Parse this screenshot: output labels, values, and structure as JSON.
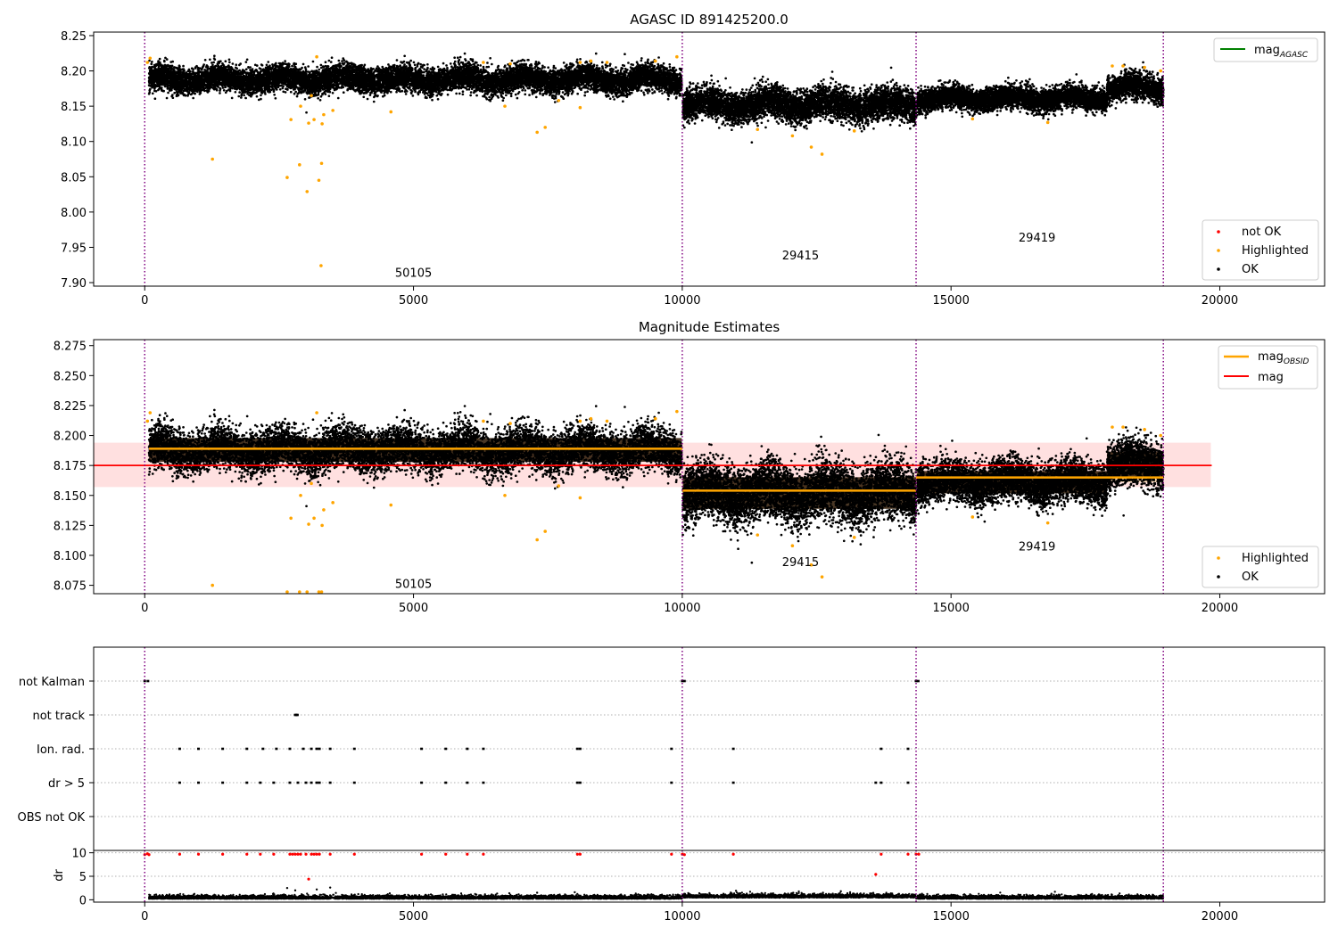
{
  "chart_data": [
    {
      "type": "scatter",
      "title": "AGASC ID 891425200.0",
      "xlim": [
        -950,
        21950
      ],
      "ylim": [
        7.895,
        8.255
      ],
      "xticks": [
        0,
        5000,
        10000,
        15000,
        20000
      ],
      "yticks": [
        7.9,
        7.95,
        8.0,
        8.05,
        8.1,
        8.15,
        8.2,
        8.25
      ],
      "ytick_labels": [
        "7.90",
        "7.95",
        "8.00",
        "8.05",
        "8.10",
        "8.15",
        "8.20",
        "8.25"
      ],
      "obsid_boundaries": [
        0,
        10000,
        14350,
        18950
      ],
      "obsid_labels": [
        {
          "x": 5000,
          "y": 7.908,
          "text": "50105"
        },
        {
          "x": 12200,
          "y": 7.933,
          "text": "29415"
        },
        {
          "x": 16600,
          "y": 7.958,
          "text": "29419"
        }
      ],
      "band_series": [
        {
          "x0": 80,
          "x1": 9990,
          "center": 8.188,
          "half_width": 0.018
        },
        {
          "x0": 10010,
          "x1": 14350,
          "center": 8.152,
          "half_width": 0.022
        },
        {
          "x0": 14370,
          "x1": 17900,
          "center": 8.161,
          "half_width": 0.016
        },
        {
          "x0": 17900,
          "x1": 18950,
          "center": 8.176,
          "half_width": 0.018
        }
      ],
      "highlighted_points": [
        [
          1260,
          8.075
        ],
        [
          2650,
          8.049
        ],
        [
          2880,
          8.067
        ],
        [
          3020,
          8.029
        ],
        [
          3240,
          8.045
        ],
        [
          3290,
          8.069
        ],
        [
          3280,
          7.924
        ],
        [
          2720,
          8.131
        ],
        [
          3050,
          8.126
        ],
        [
          3150,
          8.131
        ],
        [
          3300,
          8.125
        ],
        [
          3330,
          8.138
        ],
        [
          3500,
          8.144
        ],
        [
          4580,
          8.142
        ],
        [
          7300,
          8.113
        ],
        [
          7450,
          8.12
        ],
        [
          6700,
          8.15
        ],
        [
          7700,
          8.158
        ],
        [
          8100,
          8.148
        ],
        [
          2900,
          8.15
        ],
        [
          3100,
          8.165
        ],
        [
          11400,
          8.117
        ],
        [
          12050,
          8.108
        ],
        [
          12400,
          8.092
        ],
        [
          12600,
          8.082
        ],
        [
          13200,
          8.115
        ],
        [
          16800,
          8.127
        ],
        [
          15400,
          8.132
        ],
        [
          100,
          8.218
        ],
        [
          50,
          8.212
        ],
        [
          3200,
          8.22
        ],
        [
          6300,
          8.212
        ],
        [
          6800,
          8.21
        ],
        [
          8100,
          8.212
        ],
        [
          8300,
          8.214
        ],
        [
          8600,
          8.212
        ],
        [
          9500,
          8.214
        ],
        [
          9900,
          8.22
        ],
        [
          18600,
          8.205
        ],
        [
          18200,
          8.207
        ],
        [
          18000,
          8.207
        ],
        [
          18900,
          8.2
        ]
      ],
      "legend": {
        "placement": "upper-right",
        "entries": [
          {
            "label": "mag",
            "sub": "AGASC",
            "color": "#008000"
          }
        ]
      },
      "legend2": {
        "placement": "lower-right",
        "entries": [
          {
            "label": "not OK",
            "color": "#ff0000"
          },
          {
            "label": "Highlighted",
            "color": "#ffa500"
          },
          {
            "label": "OK",
            "color": "#000000"
          }
        ]
      }
    },
    {
      "type": "scatter",
      "title": "Magnitude Estimates",
      "xlim": [
        -950,
        21950
      ],
      "ylim": [
        8.068,
        8.28
      ],
      "xticks": [
        0,
        5000,
        10000,
        15000,
        20000
      ],
      "yticks": [
        8.075,
        8.1,
        8.125,
        8.15,
        8.175,
        8.2,
        8.225,
        8.25,
        8.275
      ],
      "ytick_labels": [
        "8.075",
        "8.100",
        "8.125",
        "8.150",
        "8.175",
        "8.200",
        "8.225",
        "8.250",
        "8.275"
      ],
      "obsid_boundaries": [
        0,
        10000,
        14350,
        18950
      ],
      "obsid_labels": [
        {
          "x": 5000,
          "y": 8.073,
          "text": "50105"
        },
        {
          "x": 12200,
          "y": 8.091,
          "text": "29415"
        },
        {
          "x": 16600,
          "y": 8.104,
          "text": "29419"
        }
      ],
      "mag_line": {
        "y": 8.175,
        "x0": -950,
        "x1": 19850,
        "band": [
          8.157,
          8.194
        ],
        "color": "#ff0000"
      },
      "obsid_mag_lines": [
        {
          "x0": 80,
          "x1": 10000,
          "y": 8.189
        },
        {
          "x0": 10000,
          "x1": 14350,
          "y": 8.154
        },
        {
          "x0": 14350,
          "x1": 18950,
          "y": 8.165
        }
      ],
      "band_series": [
        {
          "x0": 80,
          "x1": 9990,
          "center": 8.188,
          "half_width": 0.018
        },
        {
          "x0": 10010,
          "x1": 14350,
          "center": 8.152,
          "half_width": 0.024
        },
        {
          "x0": 14370,
          "x1": 17900,
          "center": 8.161,
          "half_width": 0.017
        },
        {
          "x0": 17900,
          "x1": 18950,
          "center": 8.176,
          "half_width": 0.019
        }
      ],
      "highlighted_points": [
        [
          1260,
          8.075
        ],
        [
          2650,
          8.069
        ],
        [
          2880,
          8.069
        ],
        [
          3020,
          8.069
        ],
        [
          3240,
          8.069
        ],
        [
          3290,
          8.069
        ],
        [
          2720,
          8.131
        ],
        [
          3050,
          8.126
        ],
        [
          3150,
          8.131
        ],
        [
          3300,
          8.125
        ],
        [
          3330,
          8.138
        ],
        [
          3500,
          8.144
        ],
        [
          4580,
          8.142
        ],
        [
          7300,
          8.113
        ],
        [
          7450,
          8.12
        ],
        [
          6700,
          8.15
        ],
        [
          7700,
          8.158
        ],
        [
          8100,
          8.148
        ],
        [
          2900,
          8.15
        ],
        [
          3100,
          8.16
        ],
        [
          11400,
          8.117
        ],
        [
          12050,
          8.108
        ],
        [
          12400,
          8.092
        ],
        [
          12600,
          8.082
        ],
        [
          13200,
          8.115
        ],
        [
          16800,
          8.127
        ],
        [
          15400,
          8.132
        ],
        [
          100,
          8.219
        ],
        [
          50,
          8.212
        ],
        [
          3200,
          8.219
        ],
        [
          6300,
          8.212
        ],
        [
          6800,
          8.21
        ],
        [
          8100,
          8.212
        ],
        [
          8300,
          8.214
        ],
        [
          8600,
          8.212
        ],
        [
          9500,
          8.214
        ],
        [
          9900,
          8.22
        ],
        [
          18600,
          8.205
        ],
        [
          18200,
          8.207
        ],
        [
          18000,
          8.207
        ],
        [
          18900,
          8.2
        ]
      ],
      "legend": {
        "placement": "upper-right",
        "entries": [
          {
            "label": "mag",
            "sub": "OBSID",
            "color": "#ffa500"
          },
          {
            "label": "mag",
            "sub": "",
            "color": "#ff0000"
          }
        ]
      },
      "legend2": {
        "placement": "lower-right",
        "entries": [
          {
            "label": "Highlighted",
            "color": "#ffa500"
          },
          {
            "label": "OK",
            "color": "#000000"
          }
        ]
      }
    },
    {
      "type": "scatter",
      "title": "",
      "xlim": [
        -950,
        21950
      ],
      "categories": [
        "not Kalman",
        "not track",
        "Ion. rad.",
        "dr > 5",
        "OBS not OK"
      ],
      "obsid_boundaries": [
        0,
        10000,
        14350,
        18950
      ],
      "flags": {
        "not Kalman": [
          0,
          60,
          10000,
          10040,
          14350,
          14390
        ],
        "not track": [
          2800,
          2820,
          2840
        ],
        "Ion. rad.": [
          650,
          1000,
          1450,
          1900,
          2200,
          2450,
          2700,
          2950,
          3100,
          3200,
          3250,
          3450,
          3900,
          5150,
          5600,
          6000,
          6300,
          8050,
          8100,
          9800,
          10950,
          13700,
          14200
        ],
        "dr > 5": [
          650,
          1000,
          1450,
          1900,
          2150,
          2400,
          2700,
          2850,
          3000,
          3100,
          3200,
          3250,
          3450,
          3900,
          5150,
          5600,
          6000,
          6300,
          8050,
          8100,
          9800,
          10950,
          13600,
          13700,
          14200
        ],
        "OBS not OK": []
      }
    },
    {
      "type": "scatter",
      "title": "",
      "xlabel": "",
      "ylabel": "dr",
      "xlim": [
        -950,
        21950
      ],
      "ylim": [
        -0.5,
        10.5
      ],
      "xticks": [
        0,
        5000,
        10000,
        15000,
        20000
      ],
      "yticks": [
        0,
        5,
        10
      ],
      "ytick_labels": [
        "0",
        "5",
        "10"
      ],
      "obsid_boundaries": [
        0,
        10000,
        14350,
        18950
      ],
      "red_points": [
        [
          0,
          9.6
        ],
        [
          50,
          9.8
        ],
        [
          80,
          9.6
        ],
        [
          650,
          9.7
        ],
        [
          1000,
          9.7
        ],
        [
          1450,
          9.7
        ],
        [
          1900,
          9.7
        ],
        [
          2150,
          9.7
        ],
        [
          2400,
          9.7
        ],
        [
          2700,
          9.7
        ],
        [
          2750,
          9.7
        ],
        [
          2800,
          9.7
        ],
        [
          2850,
          9.7
        ],
        [
          2900,
          9.7
        ],
        [
          3000,
          9.7
        ],
        [
          3100,
          9.7
        ],
        [
          3150,
          9.7
        ],
        [
          3200,
          9.7
        ],
        [
          3250,
          9.7
        ],
        [
          3450,
          9.7
        ],
        [
          3900,
          9.7
        ],
        [
          5150,
          9.7
        ],
        [
          5600,
          9.7
        ],
        [
          6000,
          9.7
        ],
        [
          6300,
          9.7
        ],
        [
          8050,
          9.7
        ],
        [
          8100,
          9.7
        ],
        [
          9800,
          9.7
        ],
        [
          10000,
          9.7
        ],
        [
          10040,
          9.6
        ],
        [
          10950,
          9.7
        ],
        [
          13700,
          9.7
        ],
        [
          14200,
          9.7
        ],
        [
          14350,
          9.7
        ],
        [
          14400,
          9.7
        ],
        [
          3050,
          4.4
        ],
        [
          13600,
          5.4
        ]
      ],
      "dr_spikes": [
        [
          2650,
          2.5
        ],
        [
          2800,
          2.0
        ],
        [
          3200,
          2.2
        ],
        [
          3450,
          2.6
        ],
        [
          7300,
          1.5
        ],
        [
          8000,
          1.6
        ],
        [
          11000,
          1.9
        ],
        [
          12950,
          1.8
        ]
      ]
    }
  ]
}
